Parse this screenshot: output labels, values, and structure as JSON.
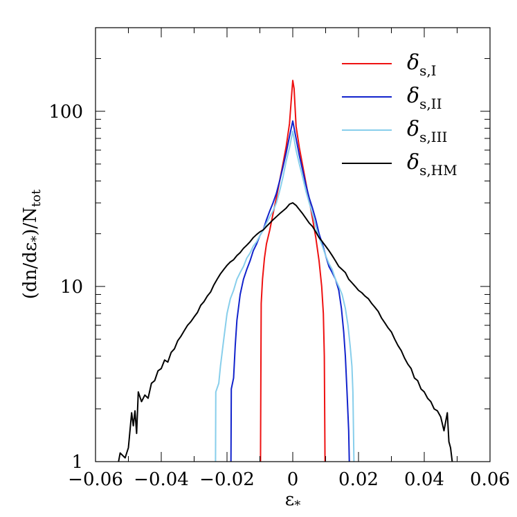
{
  "chart_data": {
    "type": "line",
    "xlabel": "ε",
    "xlabel_sub": "*",
    "ylabel": "(dn/dε",
    "ylabel_sub_star": "*",
    "ylabel_tail": ")/N",
    "ylabel_sub": "tot",
    "xlim": [
      -0.06,
      0.06
    ],
    "ylim": [
      1,
      300
    ],
    "yscale": "log",
    "grid": false,
    "legend_position": "top-right",
    "x_ticks": [
      -0.06,
      -0.04,
      -0.02,
      0,
      0.02,
      0.04,
      0.06
    ],
    "x_tick_labels": [
      "−0.06",
      "−0.04",
      "−0.02",
      "0",
      "0.02",
      "0.04",
      "0.06"
    ],
    "y_ticks": [
      1,
      10,
      100
    ],
    "y_tick_labels": [
      "1",
      "10",
      "100"
    ],
    "series": [
      {
        "name": "δ",
        "name_sub": "s,I",
        "color": "#ee1111",
        "points": [
          [
            -0.0098,
            1
          ],
          [
            -0.0097,
            3
          ],
          [
            -0.0096,
            8
          ],
          [
            -0.0092,
            11
          ],
          [
            -0.0086,
            14.5
          ],
          [
            -0.008,
            17.5
          ],
          [
            -0.007,
            21
          ],
          [
            -0.006,
            26
          ],
          [
            -0.005,
            32
          ],
          [
            -0.004,
            40
          ],
          [
            -0.003,
            50
          ],
          [
            -0.002,
            63
          ],
          [
            -0.001,
            85
          ],
          [
            -0.0004,
            120
          ],
          [
            0,
            150
          ],
          [
            0.0004,
            135
          ],
          [
            0.001,
            82
          ],
          [
            0.002,
            62
          ],
          [
            0.003,
            49
          ],
          [
            0.004,
            39
          ],
          [
            0.005,
            31
          ],
          [
            0.006,
            24.5
          ],
          [
            0.007,
            19
          ],
          [
            0.008,
            14
          ],
          [
            0.0088,
            10
          ],
          [
            0.0093,
            7
          ],
          [
            0.0096,
            4
          ],
          [
            0.0098,
            1
          ]
        ]
      },
      {
        "name": "δ",
        "name_sub": "s,II",
        "color": "#1122cc",
        "points": [
          [
            -0.0188,
            1
          ],
          [
            -0.0187,
            2.6
          ],
          [
            -0.018,
            3
          ],
          [
            -0.0175,
            4.6
          ],
          [
            -0.017,
            6.4
          ],
          [
            -0.016,
            9
          ],
          [
            -0.015,
            11
          ],
          [
            -0.014,
            12.5
          ],
          [
            -0.013,
            14
          ],
          [
            -0.012,
            16
          ],
          [
            -0.011,
            17.5
          ],
          [
            -0.01,
            19.5
          ],
          [
            -0.009,
            21
          ],
          [
            -0.008,
            24
          ],
          [
            -0.007,
            27
          ],
          [
            -0.006,
            30
          ],
          [
            -0.005,
            34
          ],
          [
            -0.004,
            40
          ],
          [
            -0.003,
            48
          ],
          [
            -0.002,
            58
          ],
          [
            -0.001,
            72
          ],
          [
            0,
            88
          ],
          [
            0.001,
            70
          ],
          [
            0.002,
            56
          ],
          [
            0.003,
            46
          ],
          [
            0.004,
            38
          ],
          [
            0.005,
            32
          ],
          [
            0.006,
            28
          ],
          [
            0.007,
            24
          ],
          [
            0.008,
            20
          ],
          [
            0.009,
            17.5
          ],
          [
            0.01,
            15
          ],
          [
            0.011,
            13
          ],
          [
            0.012,
            12
          ],
          [
            0.013,
            11
          ],
          [
            0.014,
            9.5
          ],
          [
            0.0148,
            7.5
          ],
          [
            0.0155,
            5.5
          ],
          [
            0.016,
            4
          ],
          [
            0.0165,
            2.5
          ],
          [
            0.017,
            1.5
          ],
          [
            0.0172,
            1
          ]
        ]
      },
      {
        "name": "δ",
        "name_sub": "s,III",
        "color": "#87ceeb",
        "points": [
          [
            -0.0235,
            1
          ],
          [
            -0.0234,
            2.5
          ],
          [
            -0.0225,
            2.8
          ],
          [
            -0.022,
            3.5
          ],
          [
            -0.021,
            5
          ],
          [
            -0.02,
            7
          ],
          [
            -0.019,
            8.5
          ],
          [
            -0.018,
            9.5
          ],
          [
            -0.017,
            11
          ],
          [
            -0.016,
            12
          ],
          [
            -0.015,
            13
          ],
          [
            -0.014,
            14.5
          ],
          [
            -0.013,
            15.5
          ],
          [
            -0.012,
            17
          ],
          [
            -0.011,
            18
          ],
          [
            -0.01,
            19.5
          ],
          [
            -0.009,
            21
          ],
          [
            -0.008,
            23
          ],
          [
            -0.007,
            25
          ],
          [
            -0.006,
            27
          ],
          [
            -0.005,
            30
          ],
          [
            -0.004,
            35
          ],
          [
            -0.003,
            42
          ],
          [
            -0.002,
            52
          ],
          [
            -0.001,
            62
          ],
          [
            0,
            77
          ],
          [
            0.001,
            60
          ],
          [
            0.002,
            50
          ],
          [
            0.003,
            42
          ],
          [
            0.004,
            35
          ],
          [
            0.005,
            30
          ],
          [
            0.006,
            26
          ],
          [
            0.007,
            22
          ],
          [
            0.008,
            19
          ],
          [
            0.009,
            17
          ],
          [
            0.01,
            15
          ],
          [
            0.011,
            13.5
          ],
          [
            0.012,
            12.5
          ],
          [
            0.013,
            11
          ],
          [
            0.014,
            10
          ],
          [
            0.015,
            9
          ],
          [
            0.016,
            7.5
          ],
          [
            0.0168,
            6
          ],
          [
            0.0175,
            4.5
          ],
          [
            0.018,
            3.5
          ],
          [
            0.0183,
            2.5
          ],
          [
            0.0186,
            1
          ]
        ]
      },
      {
        "name": "δ",
        "name_sub": "s,HM",
        "color": "#000000",
        "points": [
          [
            -0.053,
            1
          ],
          [
            -0.0525,
            1.12
          ],
          [
            -0.051,
            1.05
          ],
          [
            -0.05,
            1.2
          ],
          [
            -0.049,
            1.9
          ],
          [
            -0.0485,
            1.6
          ],
          [
            -0.048,
            1.95
          ],
          [
            -0.0475,
            1.45
          ],
          [
            -0.047,
            2.5
          ],
          [
            -0.046,
            2.2
          ],
          [
            -0.045,
            2.4
          ],
          [
            -0.044,
            2.3
          ],
          [
            -0.043,
            2.8
          ],
          [
            -0.042,
            2.9
          ],
          [
            -0.041,
            3.3
          ],
          [
            -0.04,
            3.4
          ],
          [
            -0.039,
            3.8
          ],
          [
            -0.038,
            3.7
          ],
          [
            -0.037,
            4.2
          ],
          [
            -0.036,
            4.4
          ],
          [
            -0.035,
            4.9
          ],
          [
            -0.034,
            5.2
          ],
          [
            -0.033,
            5.6
          ],
          [
            -0.032,
            6
          ],
          [
            -0.031,
            6.3
          ],
          [
            -0.03,
            6.7
          ],
          [
            -0.029,
            7.1
          ],
          [
            -0.028,
            7.8
          ],
          [
            -0.027,
            8.2
          ],
          [
            -0.026,
            8.8
          ],
          [
            -0.025,
            9.3
          ],
          [
            -0.024,
            10.2
          ],
          [
            -0.023,
            11
          ],
          [
            -0.022,
            11.8
          ],
          [
            -0.021,
            12.5
          ],
          [
            -0.02,
            13.2
          ],
          [
            -0.019,
            13.8
          ],
          [
            -0.018,
            14.2
          ],
          [
            -0.017,
            15
          ],
          [
            -0.016,
            15.6
          ],
          [
            -0.015,
            16.5
          ],
          [
            -0.014,
            17.2
          ],
          [
            -0.013,
            18
          ],
          [
            -0.012,
            19
          ],
          [
            -0.011,
            19.8
          ],
          [
            -0.01,
            20.5
          ],
          [
            -0.009,
            21
          ],
          [
            -0.008,
            22
          ],
          [
            -0.007,
            23
          ],
          [
            -0.006,
            24
          ],
          [
            -0.005,
            25
          ],
          [
            -0.004,
            26
          ],
          [
            -0.003,
            27
          ],
          [
            -0.002,
            28
          ],
          [
            -0.001,
            29.5
          ],
          [
            0,
            30
          ],
          [
            0.001,
            29
          ],
          [
            0.002,
            27.5
          ],
          [
            0.003,
            26
          ],
          [
            0.004,
            24.5
          ],
          [
            0.005,
            23
          ],
          [
            0.006,
            22
          ],
          [
            0.007,
            20.5
          ],
          [
            0.008,
            19
          ],
          [
            0.009,
            18
          ],
          [
            0.01,
            17
          ],
          [
            0.011,
            16
          ],
          [
            0.012,
            15
          ],
          [
            0.013,
            14
          ],
          [
            0.014,
            13
          ],
          [
            0.015,
            12.5
          ],
          [
            0.016,
            12
          ],
          [
            0.017,
            11
          ],
          [
            0.018,
            10.5
          ],
          [
            0.019,
            10
          ],
          [
            0.02,
            9.5
          ],
          [
            0.021,
            9.2
          ],
          [
            0.022,
            8.8
          ],
          [
            0.023,
            8.5
          ],
          [
            0.024,
            8
          ],
          [
            0.025,
            7.6
          ],
          [
            0.026,
            7.2
          ],
          [
            0.027,
            6.6
          ],
          [
            0.028,
            6.2
          ],
          [
            0.029,
            5.8
          ],
          [
            0.03,
            5.5
          ],
          [
            0.031,
            5
          ],
          [
            0.032,
            4.6
          ],
          [
            0.033,
            4.3
          ],
          [
            0.034,
            3.9
          ],
          [
            0.035,
            3.6
          ],
          [
            0.036,
            3.4
          ],
          [
            0.037,
            3
          ],
          [
            0.038,
            2.9
          ],
          [
            0.039,
            2.6
          ],
          [
            0.04,
            2.5
          ],
          [
            0.041,
            2.3
          ],
          [
            0.042,
            2.2
          ],
          [
            0.043,
            2
          ],
          [
            0.044,
            1.95
          ],
          [
            0.045,
            1.8
          ],
          [
            0.046,
            1.5
          ],
          [
            0.047,
            1.9
          ],
          [
            0.0475,
            1.3
          ],
          [
            0.048,
            1.2
          ],
          [
            0.0485,
            1
          ]
        ]
      }
    ]
  }
}
